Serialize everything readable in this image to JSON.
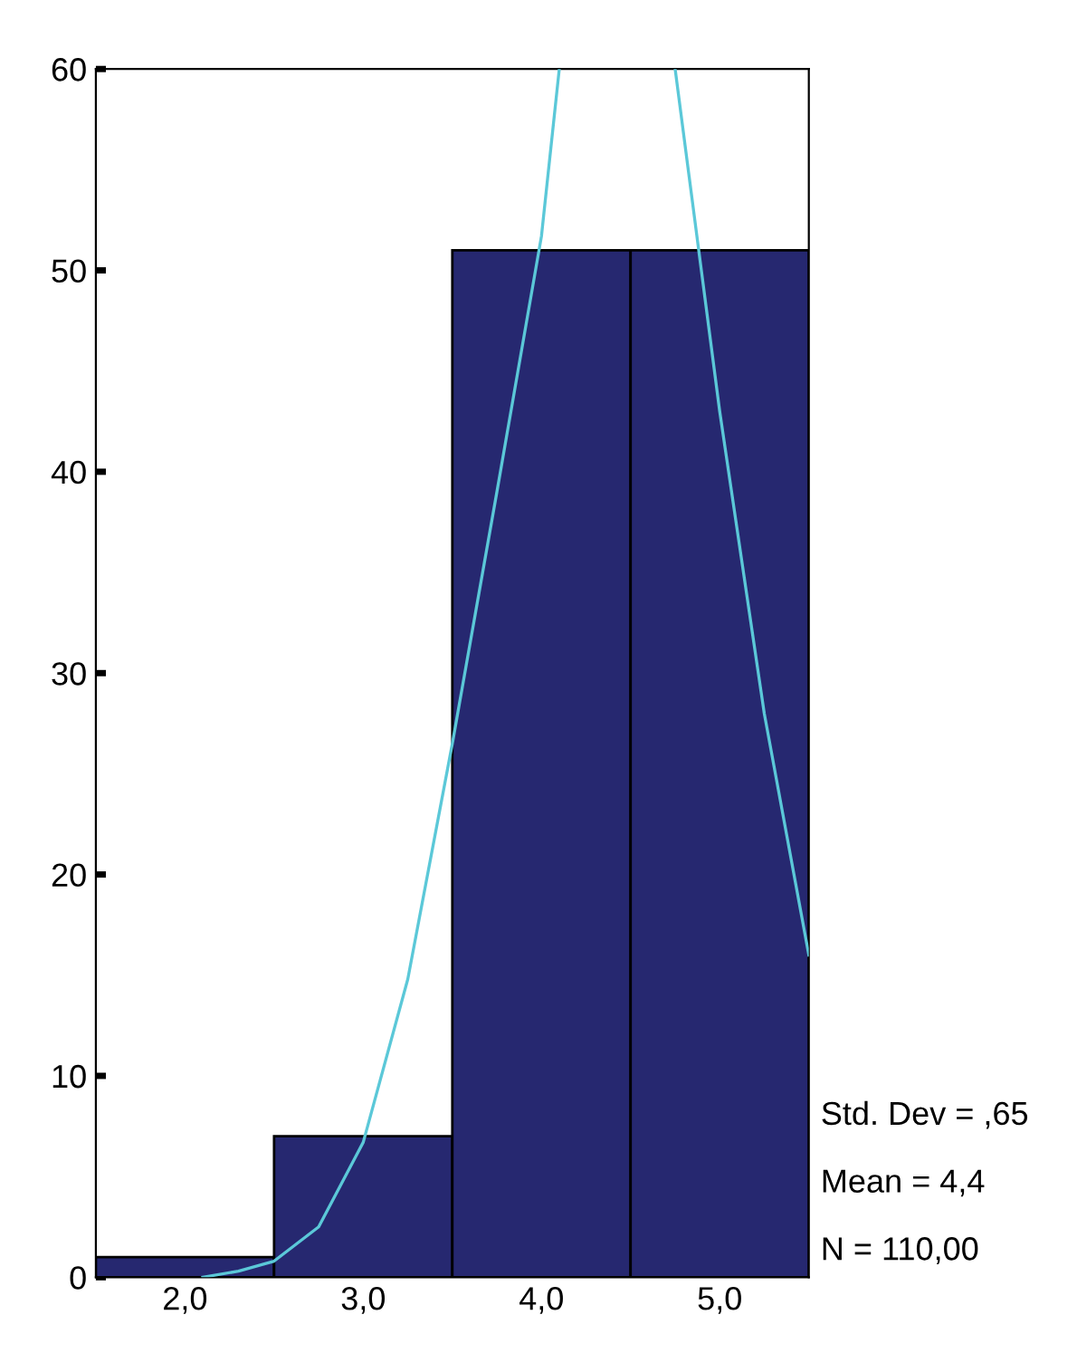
{
  "chart_data": {
    "type": "histogram",
    "bins": [
      1.5,
      2.5,
      3.5,
      4.5,
      5.5
    ],
    "values": [
      1,
      7,
      51,
      51
    ],
    "color": "#262870",
    "xlim": [
      1.5,
      5.5
    ],
    "ylim": [
      0,
      60
    ],
    "xticks": [
      {
        "value": 2,
        "label": "2,0"
      },
      {
        "value": 3,
        "label": "3,0"
      },
      {
        "value": 4,
        "label": "4,0"
      },
      {
        "value": 5,
        "label": "5,0"
      }
    ],
    "yticks": [
      0,
      10,
      20,
      30,
      40,
      50,
      60
    ],
    "series": [
      {
        "type": "line",
        "color": "#5bc8d8",
        "x": [
          2.1,
          2.3,
          2.5,
          2.75,
          3.0,
          3.25,
          3.5,
          3.75,
          4.0,
          4.1,
          4.15,
          4.7,
          4.75,
          5.0,
          5.25,
          5.5
        ],
        "values": [
          0,
          0.3,
          0.8,
          2.5,
          6.7,
          14.8,
          26.5,
          39,
          51.7,
          60,
          null,
          null,
          60,
          43,
          28,
          16
        ]
      }
    ],
    "annotations": [
      "Std. Dev = ,65",
      "Mean = 4,4",
      "N = 110,00"
    ]
  }
}
